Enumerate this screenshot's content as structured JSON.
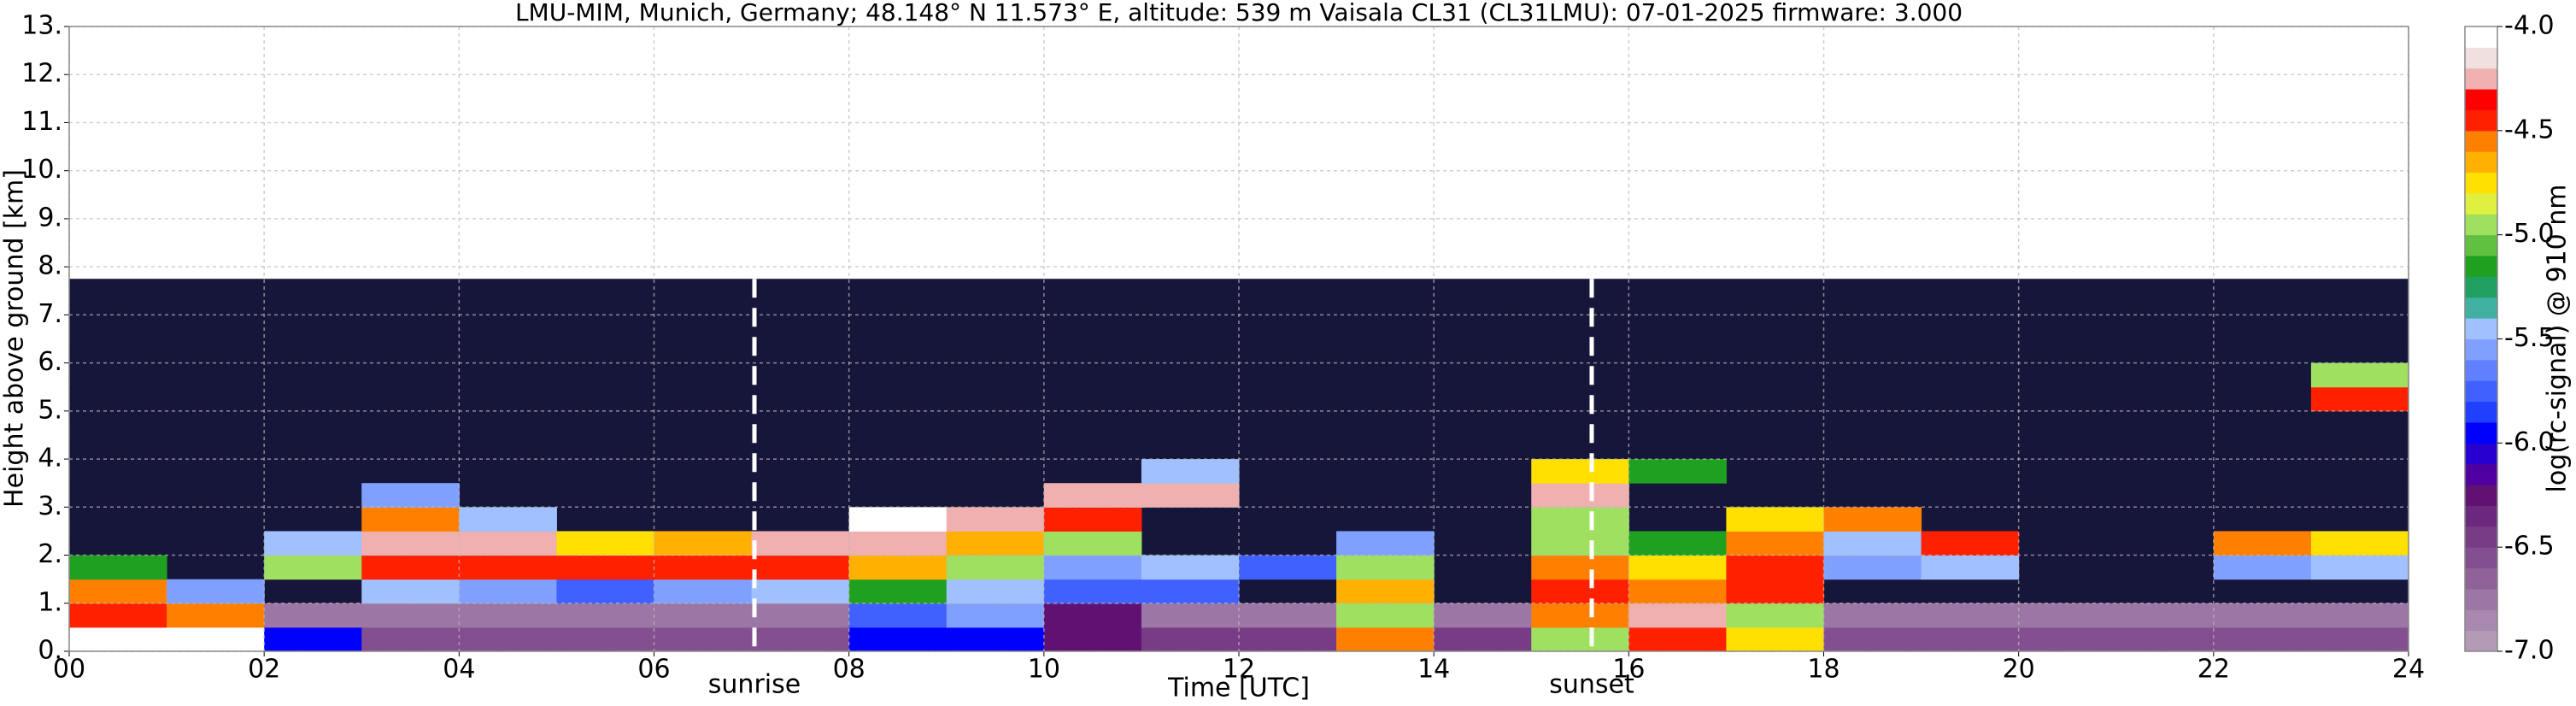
{
  "chart_data": {
    "type": "heatmap",
    "title": "LMU-MIM, Munich, Germany; 48.148° N 11.573° E, altitude: 539 m    Vaisala CL31 (CL31LMU): 07-01-2025    firmware: 3.000",
    "xlabel": "Time [UTC]",
    "ylabel": "Height above ground [km]",
    "colorbar_label": "log(rc-signal) @ 910 nm",
    "xlim": [
      0,
      24
    ],
    "xticks": [
      {
        "value": 0,
        "label": "00"
      },
      {
        "value": 2,
        "label": "02"
      },
      {
        "value": 4,
        "label": "04"
      },
      {
        "value": 6,
        "label": "06"
      },
      {
        "value": 8,
        "label": "08"
      },
      10,
      12,
      14,
      16,
      18,
      20,
      22,
      24
    ],
    "ylim": [
      0,
      13
    ],
    "yticks": [
      {
        "value": 0,
        "label": "0."
      },
      {
        "value": 1,
        "label": "1."
      },
      {
        "value": 2,
        "label": "2."
      },
      {
        "value": 3,
        "label": "3."
      },
      {
        "value": 4,
        "label": "4."
      },
      {
        "value": 5,
        "label": "5."
      },
      {
        "value": 6,
        "label": "6."
      },
      {
        "value": 7,
        "label": "7."
      },
      {
        "value": 8,
        "label": "8."
      },
      {
        "value": 9,
        "label": "9."
      },
      {
        "value": 10,
        "label": "10."
      },
      {
        "value": 11,
        "label": "11."
      },
      {
        "value": 12,
        "label": "12."
      },
      {
        "value": 13,
        "label": "13."
      }
    ],
    "grid": true,
    "annotations": [
      {
        "text": "sunrise",
        "x": 7.03
      },
      {
        "text": "sunset",
        "x": 15.62
      }
    ],
    "clim": [
      -7,
      -4
    ],
    "cticks": [
      {
        "value": -7,
        "label": "-7.0"
      },
      {
        "value": -6.5,
        "label": "-6.5"
      },
      {
        "value": -6,
        "label": "-6.0"
      },
      {
        "value": -5.5,
        "label": "-5.5"
      },
      {
        "value": -5,
        "label": "-5.0"
      },
      {
        "value": -4.5,
        "label": "-4.5"
      },
      {
        "value": -4,
        "label": "-4.0"
      }
    ],
    "colors": [
      "#b59ab8",
      "#a888ae",
      "#9c76a4",
      "#90629a",
      "#844f90",
      "#783c86",
      "#6c287c",
      "#601272",
      "#5000a0",
      "#2800d0",
      "#0000ff",
      "#2040ff",
      "#4060ff",
      "#6080ff",
      "#80a0ff",
      "#a0c0ff",
      "#40b0a0",
      "#20a060",
      "#20a020",
      "#60c040",
      "#a0e060",
      "#e0f040",
      "#ffe000",
      "#ffb000",
      "#ff8000",
      "#ff2000",
      "#ff0000",
      "#f0b0b0",
      "#f0e0e0",
      "#ffffff"
    ],
    "xbins": [
      0,
      1,
      2,
      3,
      4,
      5,
      6,
      7,
      8,
      9,
      10,
      11,
      12,
      13,
      14,
      15,
      16,
      17,
      18,
      19,
      20,
      21,
      22,
      23,
      24
    ],
    "ybins": [
      0,
      0.5,
      1,
      1.5,
      2,
      2.5,
      3,
      3.5,
      4,
      4.5,
      5,
      5.5,
      6,
      6.5,
      7,
      7.5,
      7.75
    ],
    "z": [
      [
        -4.1,
        -4.1,
        -6.0,
        -6.6,
        -6.6,
        -6.6,
        -6.6,
        -6.6,
        -6.0,
        -6.0,
        -6.3,
        -6.5,
        -6.5,
        -4.6,
        -6.5,
        -5.0,
        -4.5,
        -4.8,
        -6.6,
        -6.6,
        -6.6,
        -6.6,
        -6.6,
        -6.6
      ],
      [
        -4.4,
        -4.6,
        -6.8,
        -6.8,
        -6.8,
        -6.8,
        -6.8,
        -6.8,
        -5.8,
        -5.6,
        -6.2,
        -6.8,
        -6.8,
        -5.0,
        -6.8,
        -4.6,
        -4.3,
        -4.9,
        -6.8,
        -6.8,
        -6.8,
        -6.8,
        -6.8,
        -6.8
      ],
      [
        -4.6,
        -5.6,
        null,
        -5.4,
        -5.6,
        -5.8,
        -5.6,
        -5.5,
        -5.2,
        -5.4,
        -5.8,
        -5.8,
        null,
        -4.7,
        null,
        -4.5,
        -4.6,
        -4.5,
        null,
        null,
        null,
        null,
        null,
        null
      ],
      [
        -5.2,
        null,
        -5.0,
        -4.5,
        -4.4,
        -4.4,
        -4.4,
        -4.5,
        -4.7,
        -5.0,
        -5.6,
        -5.5,
        -5.8,
        -5.0,
        null,
        -4.6,
        -4.8,
        -4.4,
        -5.6,
        -5.4,
        null,
        null,
        -5.6,
        -5.5
      ],
      [
        null,
        null,
        -5.4,
        -4.3,
        -4.2,
        -4.8,
        -4.7,
        -4.3,
        -4.2,
        -4.7,
        -5.0,
        null,
        null,
        -5.6,
        null,
        -5.0,
        -5.2,
        -4.6,
        -5.5,
        -4.5,
        null,
        null,
        -4.6,
        -4.8
      ],
      [
        null,
        null,
        null,
        -4.6,
        -5.4,
        null,
        null,
        null,
        -4.1,
        -4.3,
        -4.4,
        null,
        null,
        null,
        null,
        -5.0,
        null,
        -4.8,
        -4.6,
        null,
        null,
        null,
        null,
        null
      ],
      [
        null,
        null,
        null,
        -5.6,
        null,
        null,
        null,
        null,
        null,
        null,
        -4.2,
        -4.3,
        null,
        null,
        null,
        -4.3,
        null,
        null,
        null,
        null,
        null,
        null,
        null,
        null
      ],
      [
        null,
        null,
        null,
        null,
        null,
        null,
        null,
        null,
        null,
        null,
        null,
        -5.4,
        null,
        null,
        null,
        -4.8,
        -5.2,
        null,
        null,
        null,
        null,
        null,
        null,
        null
      ],
      [
        null,
        null,
        null,
        null,
        null,
        null,
        null,
        null,
        null,
        null,
        null,
        null,
        null,
        null,
        null,
        null,
        null,
        null,
        null,
        null,
        null,
        null,
        null,
        null
      ],
      [
        null,
        null,
        null,
        null,
        null,
        null,
        null,
        null,
        null,
        null,
        null,
        null,
        null,
        null,
        null,
        null,
        null,
        null,
        null,
        null,
        null,
        null,
        null,
        null
      ],
      [
        null,
        null,
        null,
        null,
        null,
        null,
        null,
        null,
        null,
        null,
        null,
        null,
        null,
        null,
        null,
        null,
        null,
        null,
        null,
        null,
        null,
        null,
        null,
        -4.4
      ],
      [
        null,
        null,
        null,
        null,
        null,
        null,
        null,
        null,
        null,
        null,
        null,
        null,
        null,
        null,
        null,
        null,
        null,
        null,
        null,
        null,
        null,
        null,
        null,
        -5.0
      ],
      [
        null,
        null,
        null,
        null,
        null,
        null,
        null,
        null,
        null,
        null,
        null,
        null,
        null,
        null,
        null,
        null,
        null,
        null,
        null,
        null,
        null,
        null,
        null,
        null
      ],
      [
        null,
        null,
        null,
        null,
        null,
        null,
        null,
        null,
        null,
        null,
        null,
        null,
        null,
        null,
        null,
        null,
        null,
        null,
        null,
        null,
        null,
        null,
        null,
        null
      ],
      [
        null,
        null,
        null,
        null,
        null,
        null,
        null,
        null,
        null,
        null,
        null,
        null,
        null,
        null,
        null,
        null,
        null,
        null,
        null,
        null,
        null,
        null,
        null,
        null
      ],
      [
        null,
        null,
        null,
        null,
        null,
        null,
        null,
        null,
        null,
        null,
        null,
        null,
        null,
        null,
        null,
        null,
        null,
        null,
        null,
        null,
        null,
        null,
        null,
        null
      ]
    ]
  }
}
